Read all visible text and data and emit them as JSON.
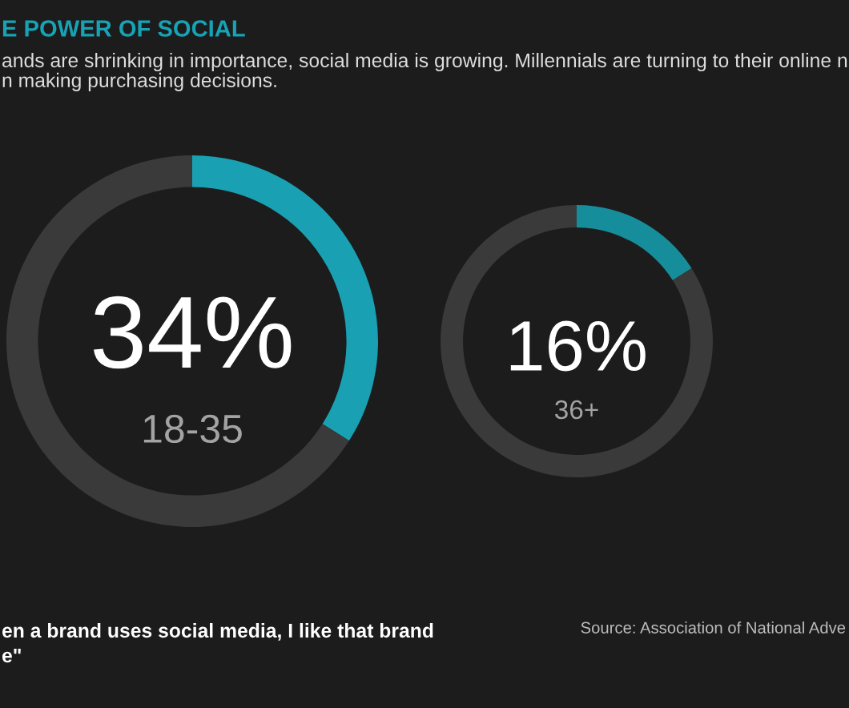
{
  "chart_data": [
    {
      "type": "other",
      "title": "E POWER OF SOCIAL",
      "subtitle": "ands are shrinking in importance, social media is growing. Millennials are turning to their online n\nn making purchasing decisions."
    },
    {
      "type": "donut",
      "title": "34%",
      "subtitle": "18-35",
      "categories": [
        null,
        null
      ],
      "values": [
        34,
        66
      ],
      "colors": [
        "#19a1b3",
        "#3a3a3a"
      ]
    },
    {
      "type": "donut",
      "title": "16%",
      "subtitle": "36+",
      "categories": [
        null,
        null
      ],
      "values": [
        16,
        84
      ],
      "colors": [
        "#168d9a",
        "#3a3a3a"
      ]
    },
    {
      "type": "other",
      "annotations": [
        "en a brand uses social media, I like that brand\ne\"",
        "Source: Association of National Adve"
      ]
    }
  ]
}
